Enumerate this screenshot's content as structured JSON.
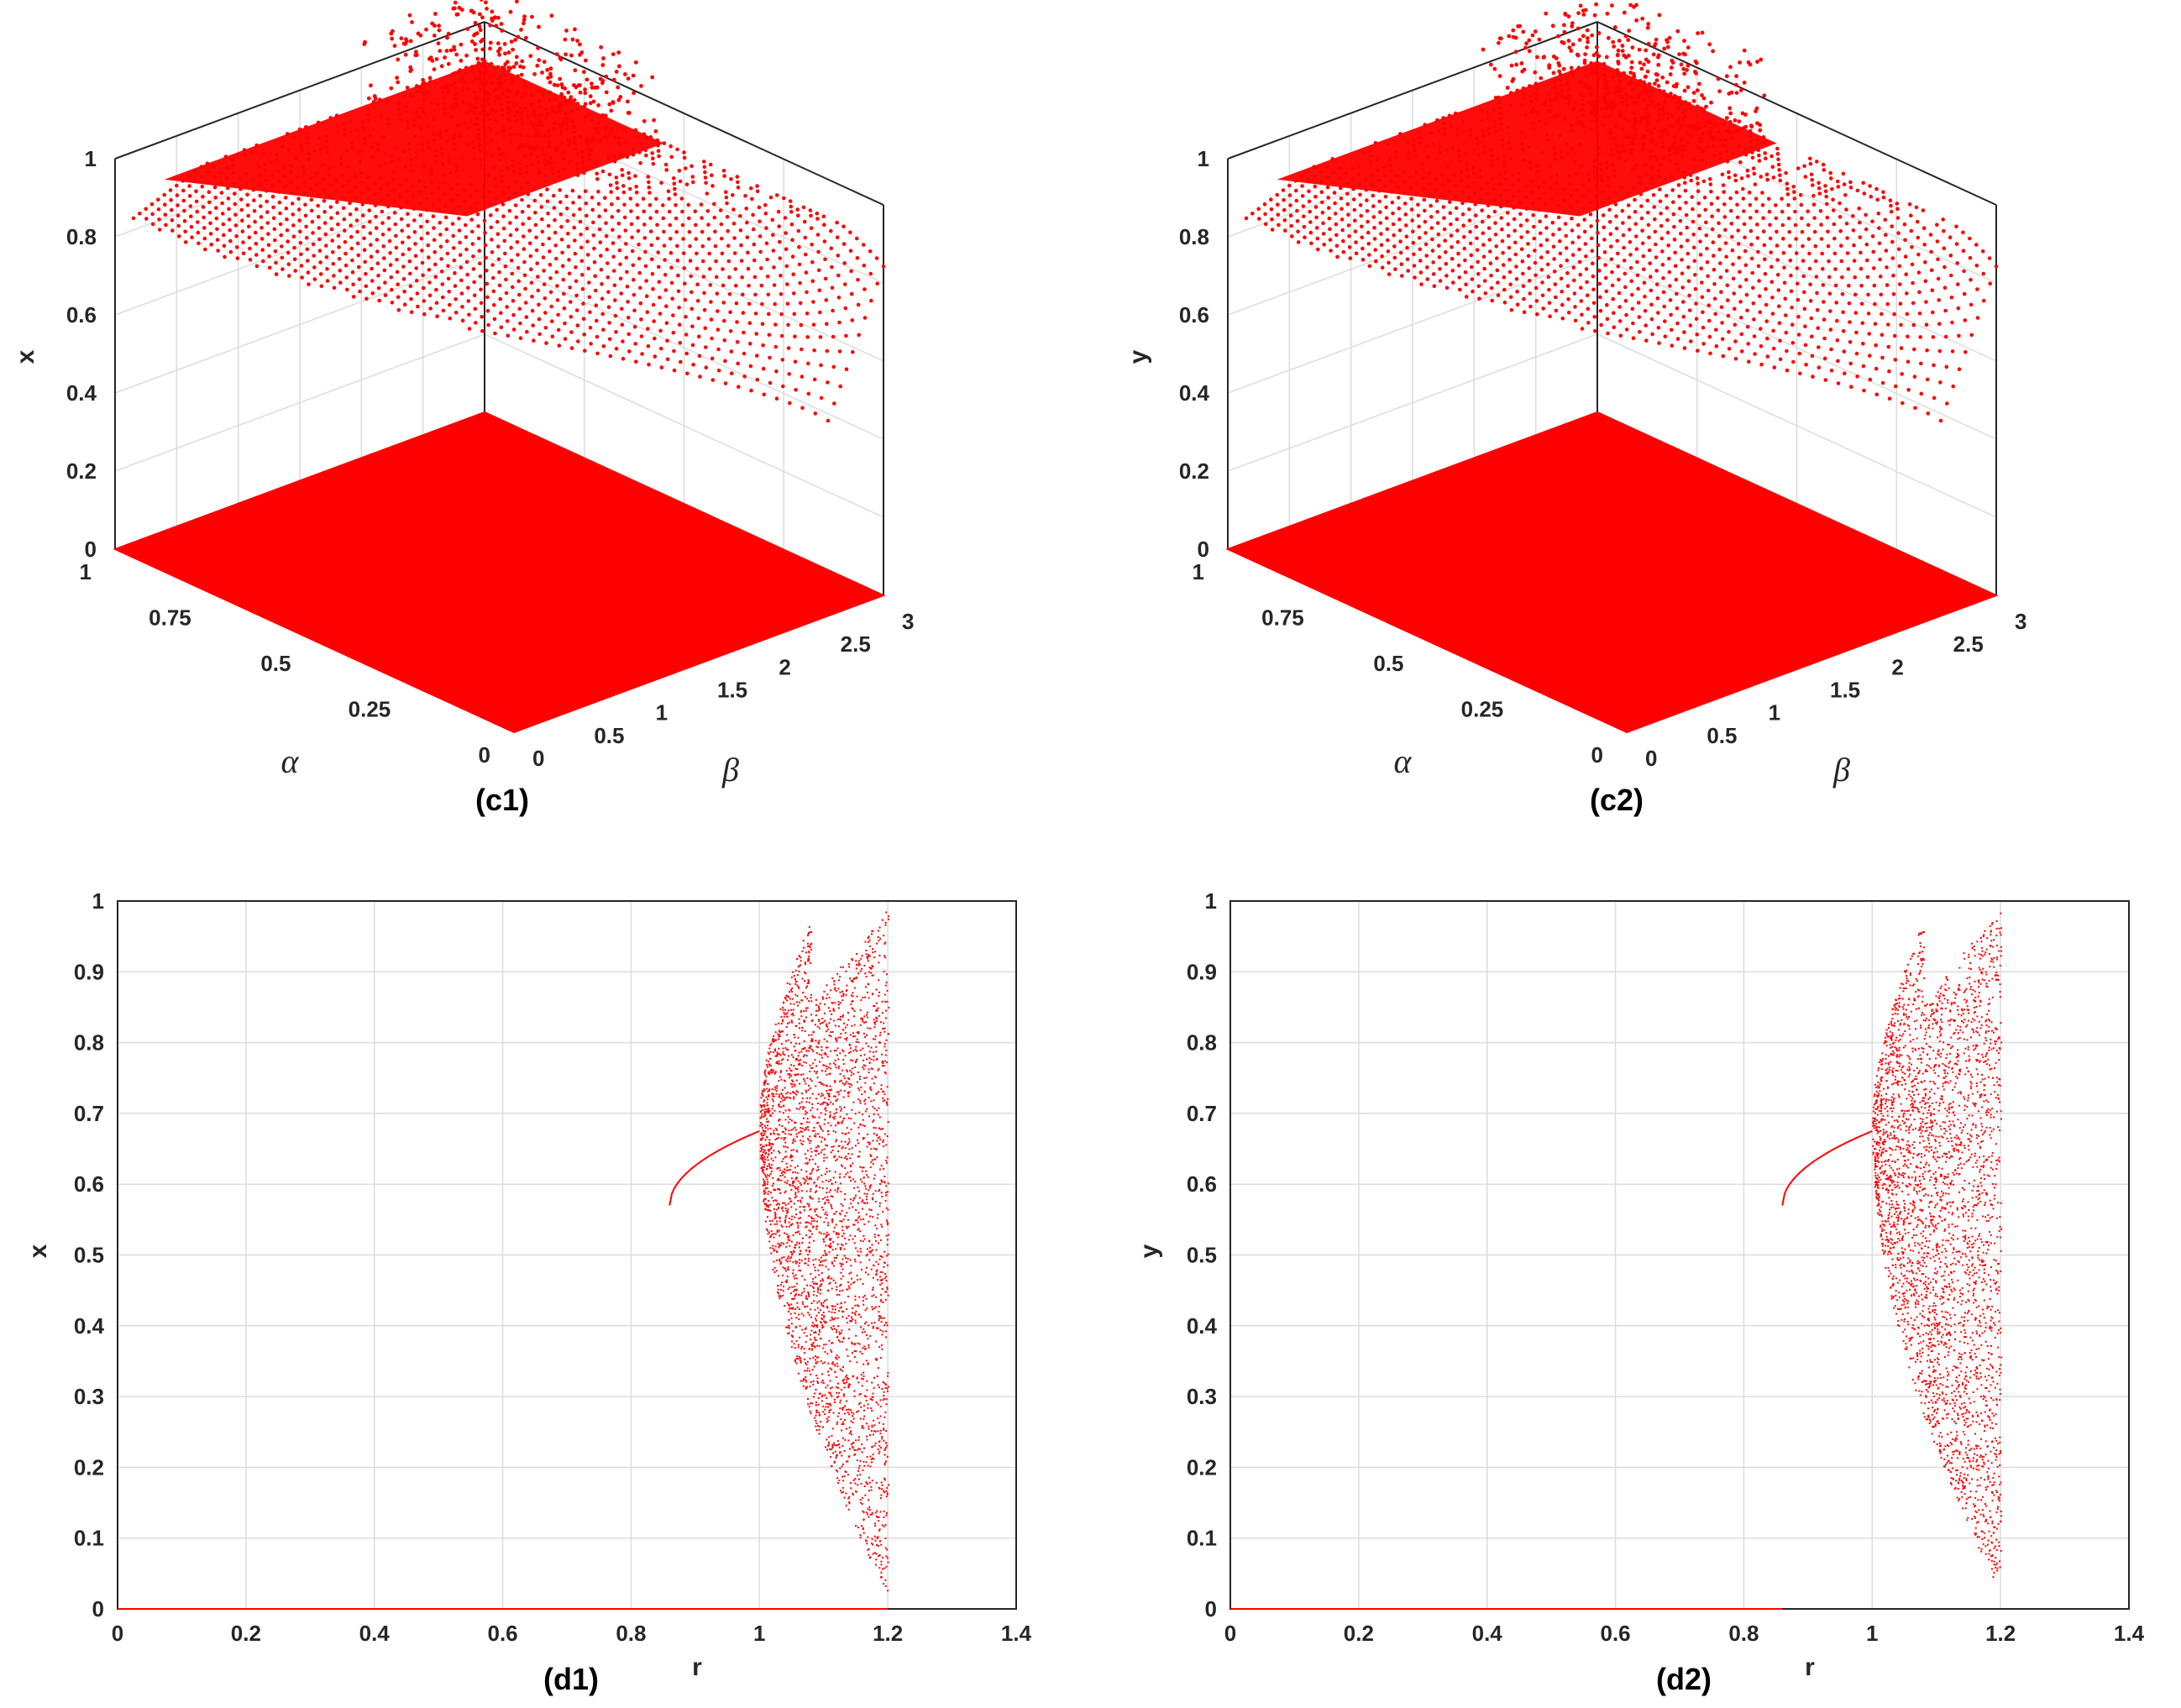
{
  "colors": {
    "marker": "#ff0000",
    "axis": "#262626",
    "grid": "#dcdcdc"
  },
  "chart_data": [
    {
      "type": "scatter",
      "id": "c1",
      "panel_label": "(c1)",
      "view": "3d",
      "zlabel": "x",
      "xlabel": "α",
      "ylabel": "β",
      "alpha_ticks": [
        "0",
        "0.25",
        "0.5",
        "0.75",
        "1"
      ],
      "beta_ticks": [
        "0",
        "0.5",
        "1",
        "1.5",
        "2",
        "2.5",
        "3"
      ],
      "z_ticks": [
        "0",
        "0.2",
        "0.4",
        "0.6",
        "0.8",
        "1"
      ],
      "alpha_range": [
        0,
        1
      ],
      "beta_range": [
        0,
        3
      ],
      "z_range": [
        0,
        1
      ],
      "surface_cap": 0.9,
      "description_of_marks": "plane z=0 over full domain; curved sheet rising from ~0.5 to 0.9; chaotic scatter above 0.9"
    },
    {
      "type": "scatter",
      "id": "c2",
      "panel_label": "(c2)",
      "view": "3d",
      "zlabel": "y",
      "xlabel": "α",
      "ylabel": "β",
      "alpha_ticks": [
        "0",
        "0.25",
        "0.5",
        "0.75",
        "1"
      ],
      "beta_ticks": [
        "0",
        "0.5",
        "1",
        "1.5",
        "2",
        "2.5",
        "3"
      ],
      "z_ticks": [
        "0",
        "0.2",
        "0.4",
        "0.6",
        "0.8",
        "1"
      ],
      "alpha_range": [
        0,
        1
      ],
      "beta_range": [
        0,
        3
      ],
      "z_range": [
        0,
        1
      ],
      "surface_cap": 0.9
    },
    {
      "type": "scatter",
      "id": "d1",
      "panel_label": "(d1)",
      "xlabel": "r",
      "ylabel": "x",
      "xlim": [
        0,
        1.4
      ],
      "ylim": [
        0,
        1
      ],
      "x_ticks": [
        "0",
        "0.2",
        "0.4",
        "0.6",
        "0.8",
        "1",
        "1.2",
        "1.4"
      ],
      "y_ticks": [
        "0",
        "0.1",
        "0.2",
        "0.3",
        "0.4",
        "0.5",
        "0.6",
        "0.7",
        "0.8",
        "0.9",
        "1"
      ],
      "zero_branch": {
        "r_start": 0,
        "r_end": 1.2,
        "value": 0
      },
      "fixed_point_branch": {
        "r_start": 0.86,
        "r_end": 1.0,
        "value_start": 0.57,
        "value_end": 0.675
      },
      "chaotic_region": {
        "r_start": 1.0,
        "r_end": 1.2,
        "value_min": 0.02,
        "value_max": 0.99
      }
    },
    {
      "type": "scatter",
      "id": "d2",
      "panel_label": "(d2)",
      "xlabel": "r",
      "ylabel": "y",
      "xlim": [
        0,
        1.4
      ],
      "ylim": [
        0,
        1
      ],
      "x_ticks": [
        "0",
        "0.2",
        "0.4",
        "0.6",
        "0.8",
        "1",
        "1.2",
        "1.4"
      ],
      "y_ticks": [
        "0",
        "0.1",
        "0.2",
        "0.3",
        "0.4",
        "0.5",
        "0.6",
        "0.7",
        "0.8",
        "0.9",
        "1"
      ],
      "zero_branch": {
        "r_start": 0,
        "r_end": 0.86,
        "value": 0
      },
      "fixed_point_branch": {
        "r_start": 0.86,
        "r_end": 1.0,
        "value_start": 0.57,
        "value_end": 0.675
      },
      "chaotic_region": {
        "r_start": 1.0,
        "r_end": 1.2,
        "value_min": 0.03,
        "value_max": 0.99
      }
    }
  ]
}
